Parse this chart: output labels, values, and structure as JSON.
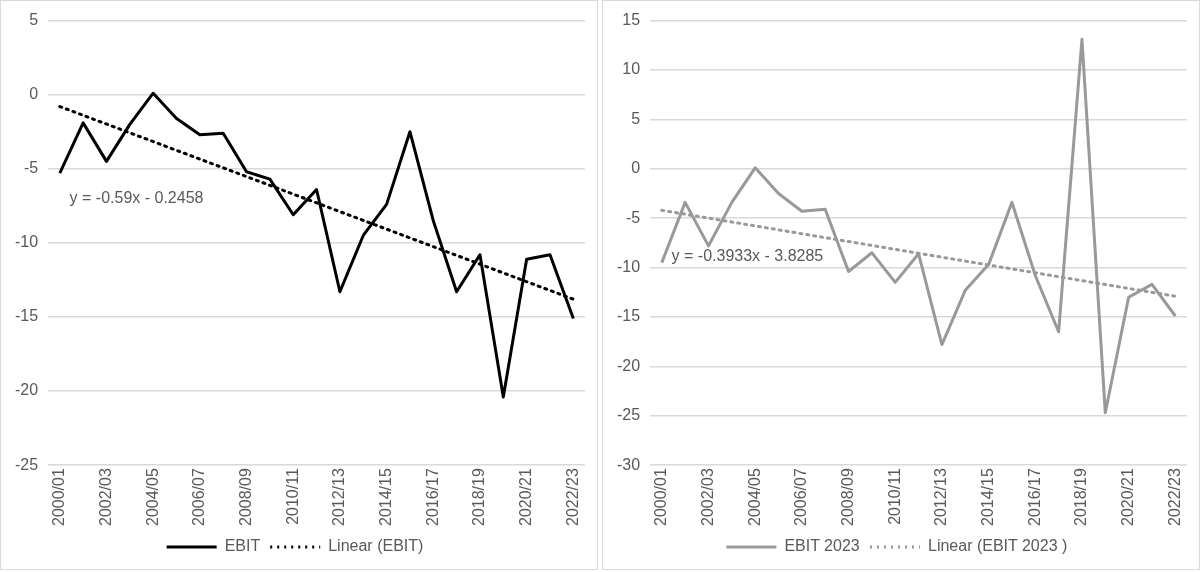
{
  "chart_data": [
    {
      "type": "line",
      "categories": [
        "2000/01",
        null,
        "2002/03",
        null,
        "2004/05",
        null,
        "2006/07",
        null,
        "2008/09",
        null,
        "2010/11",
        null,
        "2012/13",
        null,
        "2014/15",
        null,
        "2016/17",
        null,
        "2018/19",
        null,
        "2020/21",
        null,
        "2022/23"
      ],
      "series": [
        {
          "name": "EBIT",
          "color": "#000000",
          "line_style": "solid",
          "values": [
            -5.3,
            -1.9,
            -4.5,
            -2.0,
            0.1,
            -1.6,
            -2.7,
            -2.6,
            -5.2,
            -5.7,
            -8.1,
            -6.4,
            -13.3,
            -9.5,
            -7.4,
            -2.5,
            -8.5,
            -13.3,
            -10.8,
            -20.4,
            -11.1,
            -10.8,
            -15.1
          ]
        },
        {
          "name": "Linear (EBIT)",
          "type": "line",
          "color": "#000000",
          "line_style": "dotted",
          "x": [
            "2000/01",
            "2022/23"
          ],
          "values": [
            -0.8,
            -13.8
          ]
        }
      ],
      "ylim": [
        -25,
        5
      ],
      "yticks": [
        -25,
        -20,
        -15,
        -10,
        -5,
        0,
        5
      ],
      "grid": "y",
      "legend": "bottom",
      "marker": "none",
      "annotations": [
        "y = -0.59x - 0.2458"
      ]
    },
    {
      "type": "line",
      "categories": [
        "2000/01",
        null,
        "2002/03",
        null,
        "2004/05",
        null,
        "2006/07",
        null,
        "2008/09",
        null,
        "2010/11",
        null,
        "2012/13",
        null,
        "2014/15",
        null,
        "2016/17",
        null,
        "2018/19",
        null,
        "2020/21",
        null,
        "2022/23"
      ],
      "series": [
        {
          "name": "EBIT 2023",
          "color": "#999999",
          "line_style": "solid",
          "values": [
            -9.5,
            -3.4,
            -7.8,
            -3.4,
            0.1,
            -2.5,
            -4.3,
            -4.1,
            -10.4,
            -8.5,
            -11.5,
            -8.6,
            -17.8,
            -12.3,
            -9.7,
            -3.4,
            -10.8,
            -16.5,
            13.1,
            -24.7,
            -13.0,
            -11.7,
            -14.9
          ]
        },
        {
          "name": "Linear (EBIT 2023 )",
          "type": "line",
          "color": "#999999",
          "line_style": "dotted",
          "x": [
            "2000/01",
            "2022/23"
          ],
          "values": [
            -4.2,
            -12.9
          ]
        }
      ],
      "ylim": [
        -30,
        15
      ],
      "yticks": [
        -30,
        -25,
        -20,
        -15,
        -10,
        -5,
        0,
        5,
        10,
        15
      ],
      "grid": "y",
      "legend": "bottom",
      "marker": "none",
      "annotations": [
        "y = -0.3933x - 3.8285"
      ]
    }
  ]
}
